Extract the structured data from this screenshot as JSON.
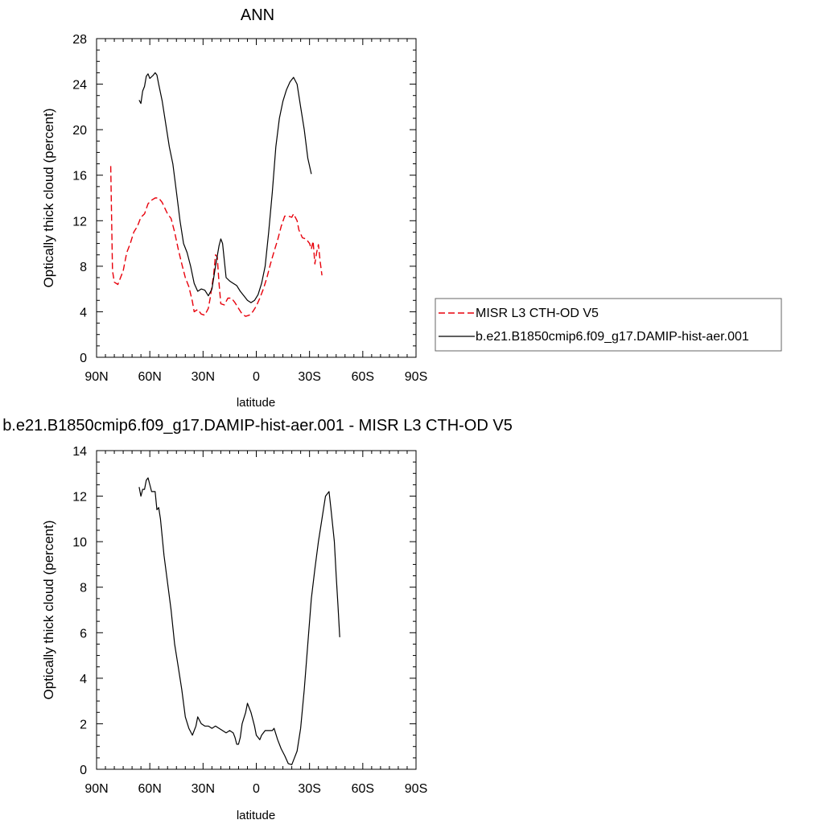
{
  "colors": {
    "misr": "#e8000b",
    "model": "#000000",
    "axis": "#000000"
  },
  "chart_data": [
    {
      "type": "line",
      "title": "ANN",
      "xlabel": "latitude",
      "ylabel": "Optically thick cloud (percent)",
      "xlim": [
        -90,
        90
      ],
      "ylim": [
        0,
        28
      ],
      "x_ticks": [
        -90,
        -60,
        -30,
        0,
        30,
        60,
        90
      ],
      "x_tick_labels": [
        "90N",
        "60N",
        "30N",
        "0",
        "30S",
        "60S",
        "90S"
      ],
      "y_ticks": [
        0,
        4,
        8,
        12,
        16,
        20,
        24,
        28
      ],
      "y_tick_labels": [
        "0",
        "4",
        "8",
        "12",
        "16",
        "20",
        "24",
        "28"
      ],
      "legend_position": "right",
      "series": [
        {
          "name": "MISR L3 CTH-OD V5",
          "color": "#e8000b",
          "style": "dashed",
          "points": [
            [
              -82,
              16.8
            ],
            [
              -81,
              7.6
            ],
            [
              -80,
              6.6
            ],
            [
              -78,
              6.4
            ],
            [
              -77,
              6.8
            ],
            [
              -75,
              7.6
            ],
            [
              -73,
              9.2
            ],
            [
              -71,
              10.0
            ],
            [
              -69,
              11.0
            ],
            [
              -67,
              11.5
            ],
            [
              -65,
              12.3
            ],
            [
              -63,
              12.6
            ],
            [
              -61,
              13.5
            ],
            [
              -59,
              13.8
            ],
            [
              -57,
              14.0
            ],
            [
              -55,
              14.0
            ],
            [
              -53,
              13.6
            ],
            [
              -50,
              12.6
            ],
            [
              -48,
              12.2
            ],
            [
              -46,
              11.0
            ],
            [
              -44,
              9.5
            ],
            [
              -42,
              8.2
            ],
            [
              -40,
              7.0
            ],
            [
              -38,
              6.2
            ],
            [
              -36,
              4.9
            ],
            [
              -35,
              4.0
            ],
            [
              -33,
              4.2
            ],
            [
              -31,
              3.8
            ],
            [
              -29,
              3.7
            ],
            [
              -27,
              4.3
            ],
            [
              -26,
              5.2
            ],
            [
              -24,
              7.3
            ],
            [
              -23,
              9.0
            ],
            [
              -22,
              8.8
            ],
            [
              -21,
              6.5
            ],
            [
              -20,
              4.7
            ],
            [
              -18,
              4.6
            ],
            [
              -16,
              5.2
            ],
            [
              -14,
              5.2
            ],
            [
              -12,
              4.8
            ],
            [
              -10,
              4.3
            ],
            [
              -8,
              3.8
            ],
            [
              -6,
              3.6
            ],
            [
              -4,
              3.7
            ],
            [
              -2,
              4.0
            ],
            [
              0,
              4.5
            ],
            [
              2,
              5.2
            ],
            [
              4,
              6.0
            ],
            [
              6,
              7.0
            ],
            [
              8,
              8.2
            ],
            [
              10,
              9.3
            ],
            [
              12,
              10.3
            ],
            [
              14,
              11.5
            ],
            [
              16,
              12.4
            ],
            [
              18,
              12.4
            ],
            [
              20,
              12.3
            ],
            [
              21,
              12.6
            ],
            [
              23,
              12.0
            ],
            [
              24,
              11.2
            ],
            [
              26,
              10.5
            ],
            [
              28,
              10.4
            ],
            [
              30,
              10.0
            ],
            [
              31,
              9.5
            ],
            [
              32,
              10.2
            ],
            [
              33,
              8.2
            ],
            [
              34,
              9.2
            ],
            [
              35,
              9.9
            ],
            [
              36,
              8.4
            ],
            [
              37,
              7.2
            ]
          ]
        },
        {
          "name": "b.e21.B1850cmip6.f09_g17.DAMIP-hist-aer.001",
          "color": "#000000",
          "style": "solid",
          "points": [
            [
              -66,
              22.6
            ],
            [
              -65,
              22.3
            ],
            [
              -64,
              23.4
            ],
            [
              -63,
              23.8
            ],
            [
              -62,
              24.7
            ],
            [
              -61,
              24.9
            ],
            [
              -60,
              24.5
            ],
            [
              -58,
              24.8
            ],
            [
              -57,
              25.0
            ],
            [
              -56,
              24.8
            ],
            [
              -55,
              24.0
            ],
            [
              -53,
              22.5
            ],
            [
              -51,
              20.5
            ],
            [
              -49,
              18.5
            ],
            [
              -47,
              17.0
            ],
            [
              -45,
              14.5
            ],
            [
              -43,
              12.0
            ],
            [
              -41,
              10.0
            ],
            [
              -39,
              9.2
            ],
            [
              -37,
              8.0
            ],
            [
              -35,
              6.5
            ],
            [
              -33,
              5.8
            ],
            [
              -31,
              6.0
            ],
            [
              -29,
              5.9
            ],
            [
              -27,
              5.4
            ],
            [
              -25,
              6.0
            ],
            [
              -23,
              8.0
            ],
            [
              -21,
              9.8
            ],
            [
              -20,
              10.4
            ],
            [
              -19,
              10.0
            ],
            [
              -18,
              8.5
            ],
            [
              -17,
              7.0
            ],
            [
              -15,
              6.7
            ],
            [
              -13,
              6.5
            ],
            [
              -11,
              6.3
            ],
            [
              -9,
              5.8
            ],
            [
              -7,
              5.4
            ],
            [
              -5,
              5.0
            ],
            [
              -3,
              4.8
            ],
            [
              -1,
              5.0
            ],
            [
              1,
              5.5
            ],
            [
              3,
              6.5
            ],
            [
              5,
              8.0
            ],
            [
              7,
              11.0
            ],
            [
              9,
              14.5
            ],
            [
              11,
              18.5
            ],
            [
              13,
              21.0
            ],
            [
              15,
              22.5
            ],
            [
              17,
              23.5
            ],
            [
              19,
              24.2
            ],
            [
              21,
              24.6
            ],
            [
              23,
              24.0
            ],
            [
              25,
              22.0
            ],
            [
              27,
              20.0
            ],
            [
              29,
              17.5
            ],
            [
              31,
              16.1
            ]
          ]
        }
      ]
    },
    {
      "type": "line",
      "title": "b.e21.B1850cmip6.f09_g17.DAMIP-hist-aer.001 - MISR L3 CTH-OD V5",
      "xlabel": "latitude",
      "ylabel": "Optically thick cloud (percent)",
      "xlim": [
        -90,
        90
      ],
      "ylim": [
        0,
        14
      ],
      "x_ticks": [
        -90,
        -60,
        -30,
        0,
        30,
        60,
        90
      ],
      "x_tick_labels": [
        "90N",
        "60N",
        "30N",
        "0",
        "30S",
        "60S",
        "90S"
      ],
      "y_ticks": [
        0,
        2,
        4,
        6,
        8,
        10,
        12,
        14
      ],
      "y_tick_labels": [
        "0",
        "2",
        "4",
        "6",
        "8",
        "10",
        "12",
        "14"
      ],
      "series": [
        {
          "color": "#000000",
          "style": "solid",
          "points": [
            [
              -66,
              12.4
            ],
            [
              -65,
              12.0
            ],
            [
              -64,
              12.3
            ],
            [
              -63,
              12.3
            ],
            [
              -62,
              12.7
            ],
            [
              -61,
              12.8
            ],
            [
              -60,
              12.5
            ],
            [
              -59,
              12.2
            ],
            [
              -57,
              12.2
            ],
            [
              -56,
              11.4
            ],
            [
              -55,
              11.5
            ],
            [
              -54,
              11.0
            ],
            [
              -52,
              9.4
            ],
            [
              -50,
              8.2
            ],
            [
              -48,
              7.0
            ],
            [
              -46,
              5.5
            ],
            [
              -44,
              4.5
            ],
            [
              -42,
              3.5
            ],
            [
              -40,
              2.3
            ],
            [
              -38,
              1.8
            ],
            [
              -36,
              1.5
            ],
            [
              -34,
              1.9
            ],
            [
              -33,
              2.3
            ],
            [
              -31,
              2.0
            ],
            [
              -29,
              1.9
            ],
            [
              -27,
              1.9
            ],
            [
              -25,
              1.8
            ],
            [
              -23,
              1.9
            ],
            [
              -21,
              1.8
            ],
            [
              -19,
              1.7
            ],
            [
              -17,
              1.6
            ],
            [
              -15,
              1.7
            ],
            [
              -13,
              1.6
            ],
            [
              -12,
              1.4
            ],
            [
              -11,
              1.1
            ],
            [
              -10,
              1.1
            ],
            [
              -9,
              1.4
            ],
            [
              -8,
              2.0
            ],
            [
              -6,
              2.5
            ],
            [
              -5,
              2.9
            ],
            [
              -4,
              2.7
            ],
            [
              -3,
              2.5
            ],
            [
              -1,
              1.9
            ],
            [
              0,
              1.5
            ],
            [
              2,
              1.3
            ],
            [
              3,
              1.5
            ],
            [
              5,
              1.7
            ],
            [
              7,
              1.7
            ],
            [
              9,
              1.7
            ],
            [
              10,
              1.8
            ],
            [
              12,
              1.3
            ],
            [
              14,
              0.9
            ],
            [
              16,
              0.6
            ],
            [
              18,
              0.25
            ],
            [
              20,
              0.2
            ],
            [
              21,
              0.4
            ],
            [
              23,
              0.8
            ],
            [
              25,
              1.8
            ],
            [
              27,
              3.5
            ],
            [
              29,
              5.5
            ],
            [
              31,
              7.5
            ],
            [
              33,
              8.8
            ],
            [
              35,
              10.0
            ],
            [
              37,
              11.0
            ],
            [
              38,
              11.5
            ],
            [
              39,
              12.0
            ],
            [
              40,
              12.1
            ],
            [
              41,
              12.2
            ],
            [
              42,
              11.5
            ],
            [
              44,
              10.0
            ],
            [
              45,
              8.5
            ],
            [
              46,
              7.2
            ],
            [
              47,
              5.8
            ]
          ]
        }
      ]
    }
  ]
}
